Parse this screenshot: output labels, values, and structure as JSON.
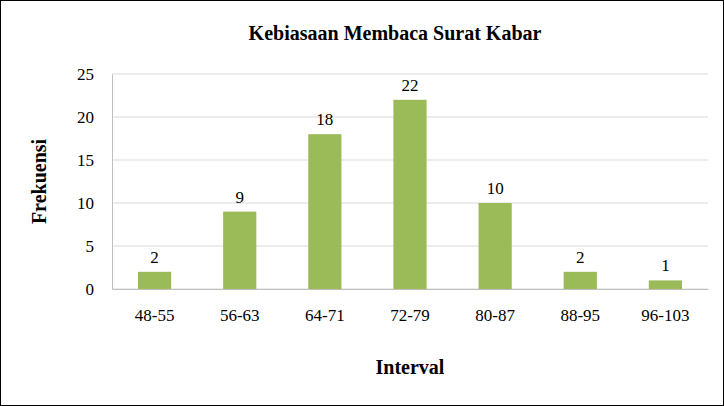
{
  "chart_data": {
    "type": "bar",
    "title": "Kebiasaan Membaca Surat Kabar",
    "x_label": "Interval",
    "y_label": "Frekuensi",
    "categories": [
      "48-55",
      "56-63",
      "64-71",
      "72-79",
      "80-87",
      "88-95",
      "96-103"
    ],
    "values": [
      2,
      9,
      18,
      22,
      10,
      2,
      1
    ],
    "color": "#9bbb59",
    "ylim": [
      0,
      25
    ],
    "yticks": [
      0,
      5,
      10,
      15,
      20,
      25
    ],
    "grid": true,
    "data_labels": true
  }
}
